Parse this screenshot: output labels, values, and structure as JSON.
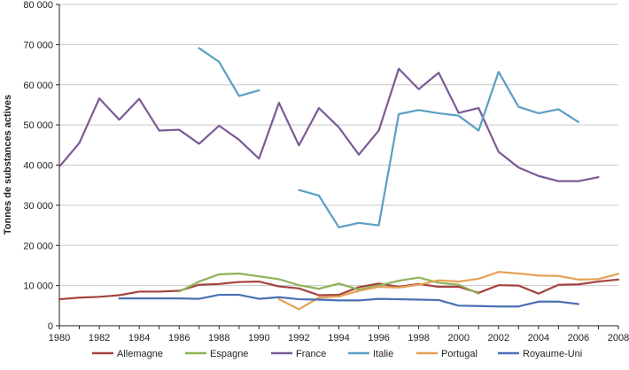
{
  "chart_data": {
    "type": "line",
    "title": "",
    "xlabel": "",
    "ylabel": "Tonnes de substances actives",
    "xlim": [
      1980,
      2008
    ],
    "ylim": [
      0,
      80000
    ],
    "y_ticks": [
      0,
      10000,
      20000,
      30000,
      40000,
      50000,
      60000,
      70000,
      80000
    ],
    "y_tick_labels": [
      "0",
      "10 000",
      "20 000",
      "30 000",
      "40 000",
      "50 000",
      "60 000",
      "70 000",
      "80 000"
    ],
    "x_ticks": [
      1980,
      1982,
      1984,
      1986,
      1988,
      1990,
      1992,
      1994,
      1996,
      1998,
      2000,
      2002,
      2004,
      2006,
      2008
    ],
    "x_tick_labels": [
      "1980",
      "1982",
      "1984",
      "1986",
      "1988",
      "1990",
      "1992",
      "1994",
      "1996",
      "1998",
      "2000",
      "2002",
      "2004",
      "2006",
      "2008"
    ],
    "grid": true,
    "legend_position": "bottom",
    "series": [
      {
        "name": "Allemagne",
        "color": "#a4433f",
        "points": [
          [
            1980,
            6600
          ],
          [
            1981,
            7000
          ],
          [
            1982,
            7200
          ],
          [
            1983,
            7600
          ],
          [
            1984,
            8500
          ],
          [
            1985,
            8500
          ],
          [
            1986,
            8700
          ],
          [
            1987,
            10200
          ],
          [
            1988,
            10400
          ],
          [
            1989,
            10900
          ],
          [
            1990,
            11000
          ],
          [
            1991,
            9800
          ],
          [
            1992,
            9300
          ],
          [
            1993,
            7600
          ],
          [
            1994,
            7700
          ],
          [
            1995,
            9600
          ],
          [
            1996,
            10500
          ],
          [
            1997,
            9700
          ],
          [
            1998,
            10400
          ],
          [
            1999,
            9700
          ],
          [
            2000,
            9700
          ],
          [
            2001,
            8200
          ],
          [
            2002,
            10100
          ],
          [
            2003,
            10000
          ],
          [
            2004,
            8000
          ],
          [
            2005,
            10200
          ],
          [
            2006,
            10300
          ],
          [
            2007,
            11000
          ],
          [
            2008,
            11500
          ]
        ]
      },
      {
        "name": "Espagne",
        "color": "#8fb356",
        "points": [
          [
            1986,
            8500
          ],
          [
            1987,
            11000
          ],
          [
            1988,
            12800
          ],
          [
            1989,
            13000
          ],
          [
            1990,
            12300
          ],
          [
            1991,
            11600
          ],
          [
            1992,
            10100
          ],
          [
            1993,
            9200
          ],
          [
            1994,
            10500
          ],
          [
            1995,
            9000
          ],
          [
            1996,
            10000
          ],
          [
            1997,
            11200
          ],
          [
            1998,
            12000
          ],
          [
            1999,
            10700
          ],
          [
            2000,
            10200
          ],
          [
            2001,
            8000
          ]
        ]
      },
      {
        "name": "France",
        "color": "#7b5a96",
        "points": [
          [
            1980,
            39600
          ],
          [
            1981,
            45500
          ],
          [
            1982,
            56600
          ],
          [
            1983,
            51300
          ],
          [
            1984,
            56500
          ],
          [
            1985,
            48600
          ],
          [
            1986,
            48800
          ],
          [
            1987,
            45300
          ],
          [
            1988,
            49800
          ],
          [
            1989,
            46300
          ],
          [
            1990,
            41600
          ],
          [
            1991,
            55500
          ],
          [
            1992,
            44900
          ],
          [
            1993,
            54200
          ],
          [
            1994,
            49400
          ],
          [
            1995,
            42600
          ],
          [
            1996,
            48600
          ],
          [
            1997,
            64000
          ],
          [
            1998,
            58900
          ],
          [
            1999,
            63000
          ],
          [
            2000,
            53000
          ],
          [
            2001,
            54200
          ],
          [
            2002,
            43300
          ],
          [
            2003,
            39400
          ],
          [
            2004,
            37300
          ],
          [
            2005,
            36000
          ],
          [
            2006,
            36000
          ],
          [
            2007,
            37000
          ]
        ]
      },
      {
        "name": "Italie",
        "color": "#5b9fc3",
        "points": [
          [
            1987,
            69100
          ],
          [
            1988,
            65700
          ],
          [
            1989,
            57200
          ],
          [
            1990,
            58600
          ],
          null,
          [
            1992,
            33800
          ],
          [
            1993,
            32400
          ],
          [
            1994,
            24500
          ],
          [
            1995,
            25600
          ],
          [
            1996,
            25000
          ],
          [
            1997,
            52700
          ],
          [
            1998,
            53700
          ],
          [
            1999,
            52900
          ],
          [
            2000,
            52300
          ],
          [
            2001,
            48600
          ],
          [
            2002,
            63200
          ],
          [
            2003,
            54500
          ],
          [
            2004,
            52900
          ],
          [
            2005,
            53900
          ],
          [
            2006,
            50700
          ]
        ]
      },
      {
        "name": "Portugal",
        "color": "#e3a157",
        "points": [
          [
            1991,
            6600
          ],
          [
            1992,
            4100
          ],
          [
            1993,
            7000
          ],
          [
            1994,
            7300
          ],
          [
            1995,
            8700
          ],
          [
            1996,
            9700
          ],
          [
            1997,
            9500
          ],
          [
            1998,
            10200
          ],
          [
            1999,
            11300
          ],
          [
            2000,
            11000
          ],
          [
            2001,
            11700
          ],
          [
            2002,
            13400
          ],
          [
            2003,
            13000
          ],
          [
            2004,
            12500
          ],
          [
            2005,
            12400
          ],
          [
            2006,
            11500
          ],
          [
            2007,
            11600
          ],
          [
            2008,
            12900
          ]
        ]
      },
      {
        "name": "Royaume-Uni",
        "color": "#4a6fb5",
        "points": [
          [
            1983,
            6800
          ],
          [
            1984,
            6800
          ],
          [
            1985,
            6800
          ],
          [
            1986,
            6800
          ],
          [
            1987,
            6700
          ],
          [
            1988,
            7700
          ],
          [
            1989,
            7700
          ],
          [
            1990,
            6700
          ],
          [
            1991,
            7100
          ],
          [
            1992,
            6600
          ],
          [
            1993,
            6500
          ],
          [
            1994,
            6300
          ],
          [
            1995,
            6300
          ],
          [
            1996,
            6700
          ],
          [
            1997,
            6600
          ],
          [
            1998,
            6500
          ],
          [
            1999,
            6400
          ],
          [
            2000,
            5000
          ],
          [
            2001,
            4900
          ],
          [
            2002,
            4800
          ],
          [
            2003,
            4800
          ],
          [
            2004,
            6000
          ],
          [
            2005,
            6000
          ],
          [
            2006,
            5400
          ]
        ]
      }
    ]
  }
}
